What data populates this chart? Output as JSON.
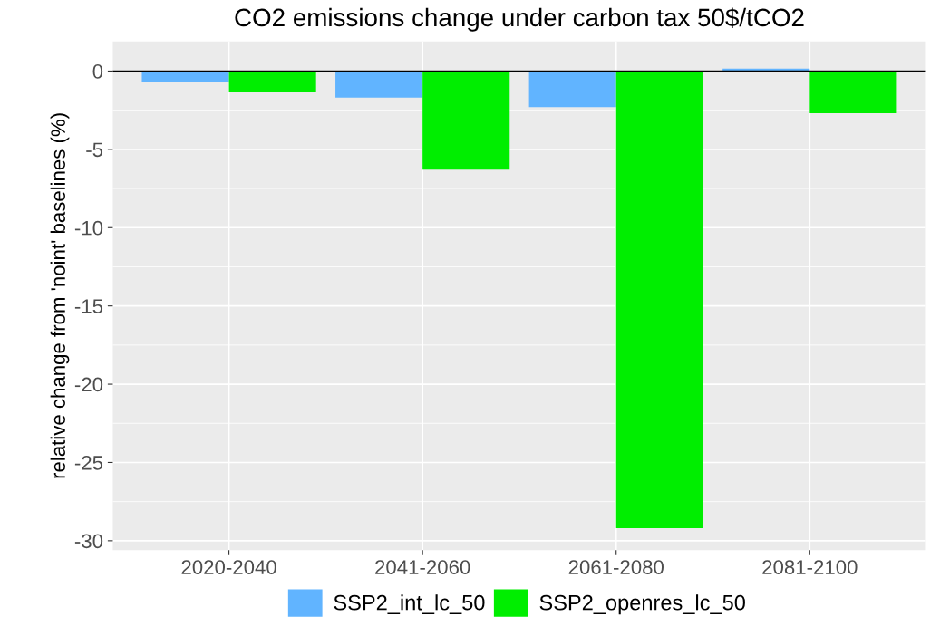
{
  "chart_data": {
    "type": "bar",
    "title": "CO2 emissions change under carbon tax 50$/tCO2",
    "ylabel": "relative change from 'noint' baselines (%)",
    "categories": [
      "2020-2040",
      "2041-2060",
      "2061-2080",
      "2081-2100"
    ],
    "series": [
      {
        "name": "SSP2_int_lc_50",
        "color": "#61b4ff",
        "values": [
          -0.7,
          -1.7,
          -2.3,
          0.15
        ]
      },
      {
        "name": "SSP2_openres_lc_50",
        "color": "#00ee00",
        "values": [
          -1.3,
          -6.3,
          -29.2,
          -2.7
        ]
      }
    ],
    "ylim": [
      -30.6,
      1.9
    ],
    "yticks": [
      {
        "value": -30,
        "label": "-30"
      },
      {
        "value": -25,
        "label": "-25"
      },
      {
        "value": -20,
        "label": "-20"
      },
      {
        "value": -15,
        "label": "-15"
      },
      {
        "value": -10,
        "label": "-10"
      },
      {
        "value": -5,
        "label": "-5"
      },
      0
    ],
    "ref_lines": [
      {
        "axis": "y",
        "value": 0,
        "label": null,
        "color": "#000000"
      }
    ],
    "grid": true,
    "legend": "bottom"
  }
}
